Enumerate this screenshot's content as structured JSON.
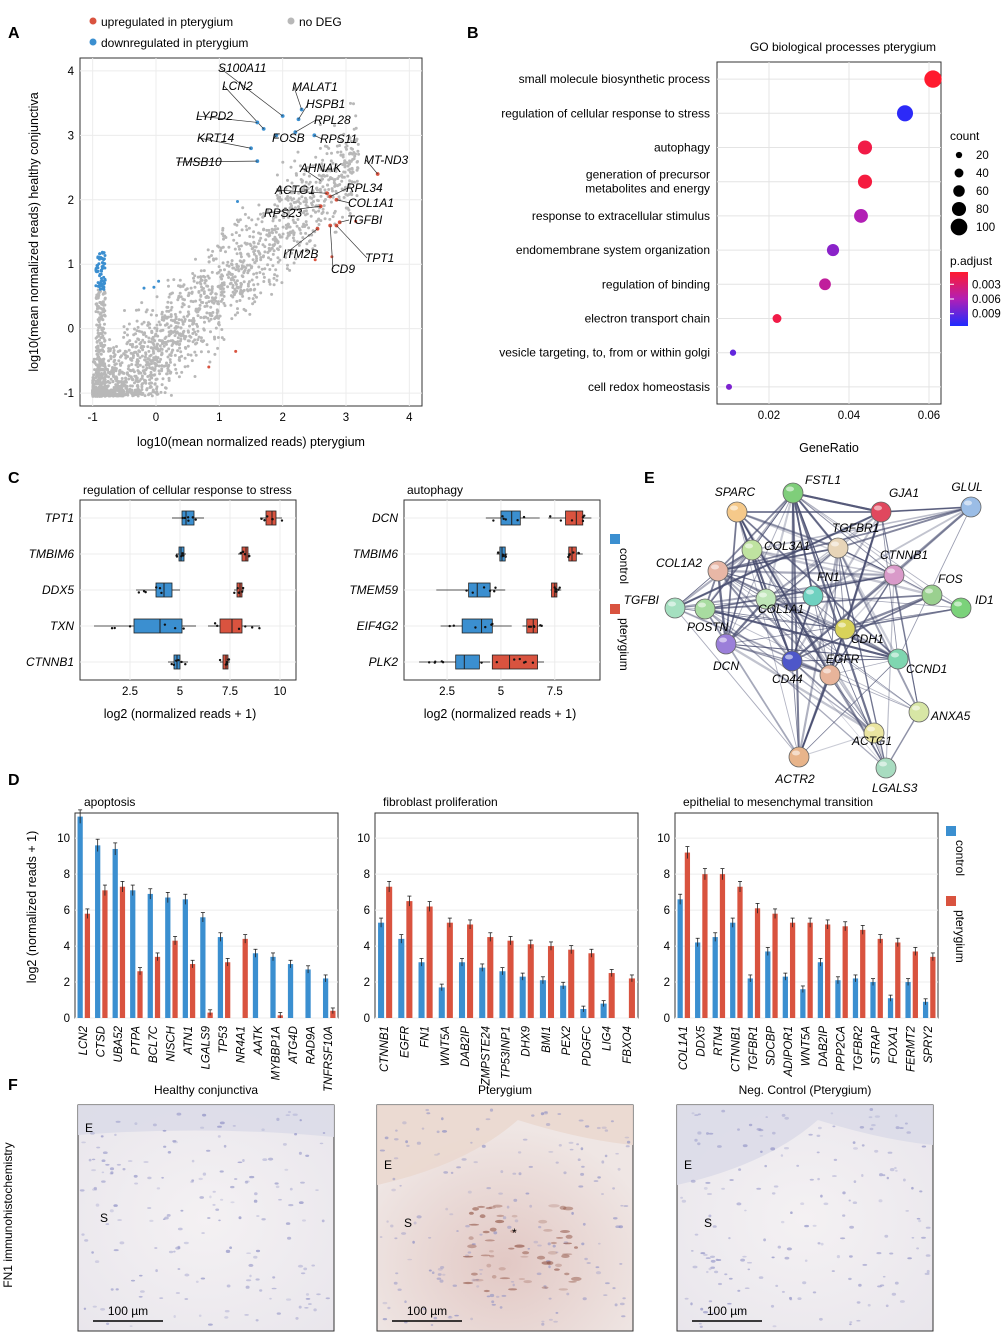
{
  "colors": {
    "up": "#d9533f",
    "down": "#3b8fd0",
    "nodeg": "#b8b8b8",
    "control": "#3b8fd0",
    "pterygium": "#d9533f"
  },
  "panel_labels": [
    "A",
    "B",
    "C",
    "D",
    "E",
    "F"
  ],
  "chart_data": [
    {
      "panel": "A",
      "type": "scatter",
      "xlabel": "log10(mean normalized reads) pterygium",
      "ylabel": "log10(mean normalized reads) healthy conjunctiva",
      "xlim": [
        -1.2,
        4.2
      ],
      "ylim": [
        -1.2,
        4.2
      ],
      "xticks": [
        -1,
        0,
        1,
        2,
        3,
        4
      ],
      "yticks": [
        -1,
        0,
        1,
        2,
        3,
        4
      ],
      "legend": [
        {
          "label": "upregulated in pterygium",
          "color": "up"
        },
        {
          "label": "no DEG",
          "color": "nodeg"
        },
        {
          "label": "downregulated in pterygium",
          "color": "down"
        }
      ],
      "labeled_genes": [
        {
          "name": "S100A11",
          "x": 2.0,
          "y": 3.3,
          "group": "down"
        },
        {
          "name": "MALAT1",
          "x": 2.3,
          "y": 3.4,
          "group": "down"
        },
        {
          "name": "LCN2",
          "x": 1.7,
          "y": 3.1,
          "group": "down"
        },
        {
          "name": "HSPB1",
          "x": 2.25,
          "y": 3.25,
          "group": "down"
        },
        {
          "name": "LYPD2",
          "x": 1.6,
          "y": 3.2,
          "group": "down"
        },
        {
          "name": "RPL28",
          "x": 2.2,
          "y": 3.05,
          "group": "down"
        },
        {
          "name": "KRT14",
          "x": 1.5,
          "y": 2.8,
          "group": "down"
        },
        {
          "name": "FOSB",
          "x": 1.9,
          "y": 3.0,
          "group": "down"
        },
        {
          "name": "RPS11",
          "x": 2.5,
          "y": 3.0,
          "group": "down"
        },
        {
          "name": "TMSB10",
          "x": 1.6,
          "y": 2.6,
          "group": "down"
        },
        {
          "name": "MT-ND3",
          "x": 3.5,
          "y": 2.4,
          "group": "up"
        },
        {
          "name": "AHNAK",
          "x": 2.6,
          "y": 2.3,
          "group": "nodeg"
        },
        {
          "name": "RPL34",
          "x": 2.75,
          "y": 2.05,
          "group": "up"
        },
        {
          "name": "ACTG1",
          "x": 2.7,
          "y": 2.1,
          "group": "up"
        },
        {
          "name": "COL1A1",
          "x": 2.85,
          "y": 2.0,
          "group": "up"
        },
        {
          "name": "RPS23",
          "x": 2.6,
          "y": 1.9,
          "group": "up"
        },
        {
          "name": "TGFBI",
          "x": 2.9,
          "y": 1.65,
          "group": "up"
        },
        {
          "name": "ITM2B",
          "x": 2.55,
          "y": 1.55,
          "group": "up"
        },
        {
          "name": "TPT1",
          "x": 2.85,
          "y": 1.6,
          "group": "up"
        },
        {
          "name": "CD9",
          "x": 2.75,
          "y": 1.6,
          "group": "up"
        }
      ]
    },
    {
      "panel": "B",
      "type": "scatter",
      "title": "GO biological processes pterygium",
      "xlabel": "GeneRatio",
      "xlim": [
        0.007,
        0.063
      ],
      "xticks": [
        0.02,
        0.04,
        0.06
      ],
      "categories": [
        "small molecule biosynthetic process",
        "regulation of cellular response to stress",
        "autophagy",
        "generation of precursor metabolites and energy",
        "response to extracellular stimulus",
        "endomembrane system organization",
        "regulation of binding",
        "electron transport chain",
        "vesicle targeting, to, from or within golgi",
        "cell redox homeostasis"
      ],
      "gene_ratio": [
        0.061,
        0.054,
        0.044,
        0.044,
        0.043,
        0.036,
        0.034,
        0.022,
        0.011,
        0.01
      ],
      "count": [
        105,
        95,
        80,
        80,
        78,
        65,
        62,
        40,
        20,
        18
      ],
      "p_adjust": [
        0.0005,
        0.011,
        0.0015,
        0.0012,
        0.006,
        0.0075,
        0.005,
        0.0015,
        0.009,
        0.008
      ],
      "size_legend": {
        "title": "count",
        "values": [
          20,
          40,
          60,
          80,
          100
        ]
      },
      "color_legend": {
        "title": "p.adjust",
        "ticks": [
          0.003,
          0.006,
          0.009
        ],
        "range": [
          0.0005,
          0.0115
        ]
      }
    },
    {
      "panel": "C",
      "type": "boxplot",
      "title": "regulation of cellular response to stress",
      "xlabel": "log2 (normalized reads + 1)",
      "xlim": [
        0,
        10.8
      ],
      "xticks": [
        2.5,
        5.0,
        7.5,
        10.0
      ],
      "categories": [
        "TPT1",
        "TMBIM6",
        "DDX5",
        "TXN",
        "CTNNB1"
      ],
      "series": [
        {
          "name": "control",
          "boxes": [
            [
              4.6,
              5.1,
              5.3,
              5.7,
              6.2
            ],
            [
              4.8,
              4.95,
              5.05,
              5.2,
              5.3
            ],
            [
              2.8,
              3.8,
              4.2,
              4.6,
              5.0
            ],
            [
              0.7,
              2.7,
              4.0,
              5.1,
              5.8
            ],
            [
              4.4,
              4.7,
              4.85,
              5.0,
              5.4
            ]
          ]
        },
        {
          "name": "pterygium",
          "boxes": [
            [
              9.0,
              9.3,
              9.6,
              9.8,
              10.1
            ],
            [
              7.9,
              8.1,
              8.3,
              8.4,
              8.5
            ],
            [
              7.7,
              7.85,
              8.0,
              8.1,
              8.2
            ],
            [
              6.4,
              7.0,
              7.6,
              8.1,
              9.0
            ],
            [
              7.0,
              7.15,
              7.3,
              7.4,
              7.5
            ]
          ]
        }
      ]
    },
    {
      "panel": "C",
      "type": "boxplot",
      "title": "autophagy",
      "xlabel": "log2 (normalized reads + 1)",
      "xlim": [
        0.5,
        9.6
      ],
      "xticks": [
        2.5,
        5.0,
        7.5
      ],
      "categories": [
        "DCN",
        "TMBIM6",
        "TMEM59",
        "EIF4G2",
        "PLK2"
      ],
      "series": [
        {
          "name": "control",
          "boxes": [
            [
              4.3,
              5.0,
              5.5,
              5.9,
              6.8
            ],
            [
              4.8,
              4.95,
              5.05,
              5.2,
              5.3
            ],
            [
              2.0,
              3.5,
              3.9,
              4.5,
              5.2
            ],
            [
              2.2,
              3.2,
              4.1,
              4.6,
              5.5
            ],
            [
              1.2,
              2.9,
              3.3,
              4.0,
              4.5
            ]
          ]
        },
        {
          "name": "pterygium",
          "boxes": [
            [
              7.2,
              8.0,
              8.5,
              8.8,
              9.2
            ],
            [
              8.1,
              8.15,
              8.3,
              8.5,
              8.8
            ],
            [
              7.3,
              7.35,
              7.5,
              7.6,
              7.8
            ],
            [
              6.0,
              6.2,
              6.5,
              6.7,
              6.9
            ],
            [
              4.6,
              4.6,
              5.4,
              6.7,
              7.0
            ]
          ]
        }
      ],
      "legend": [
        {
          "label": "control",
          "color": "control"
        },
        {
          "label": "pterygium",
          "color": "pterygium"
        }
      ]
    },
    {
      "panel": "D",
      "type": "bar",
      "title": "apoptosis",
      "ylabel": "log2 (normalized reads + 1)",
      "ylim": [
        0,
        11.4
      ],
      "yticks": [
        0,
        2,
        4,
        6,
        8,
        10
      ],
      "categories": [
        "LCN2",
        "CTSD",
        "UBA52",
        "PTPA",
        "BCL7C",
        "NISCH",
        "ATN1",
        "LGALS9",
        "TP53",
        "NR4A1",
        "AATK",
        "MYBBP1A",
        "ATG4D",
        "RAD9A",
        "TNFRSF10A"
      ],
      "series": [
        {
          "name": "control",
          "values": [
            11.2,
            9.6,
            9.4,
            7.1,
            6.9,
            6.7,
            6.6,
            5.6,
            4.5,
            0,
            3.6,
            3.4,
            3.0,
            2.7,
            2.2
          ]
        },
        {
          "name": "pterygium",
          "values": [
            5.8,
            7.1,
            7.3,
            2.6,
            3.4,
            4.3,
            3.0,
            0.3,
            3.1,
            4.4,
            0,
            0.15,
            0,
            0,
            0.4
          ]
        }
      ]
    },
    {
      "panel": "D",
      "type": "bar",
      "title": "fibroblast proliferation",
      "ylim": [
        0,
        11.4
      ],
      "yticks": [
        0,
        2,
        4,
        6,
        8,
        10
      ],
      "categories": [
        "CTNNB1",
        "EGFR",
        "FN1",
        "WNT5A",
        "DAB2IP",
        "ZMPSTE24",
        "TP53INP1",
        "DHX9",
        "BMI1",
        "PEX2",
        "PDGFC",
        "LIG4",
        "FBXO4"
      ],
      "series": [
        {
          "name": "control",
          "values": [
            5.3,
            4.4,
            3.1,
            1.7,
            3.1,
            2.8,
            2.6,
            2.3,
            2.1,
            1.8,
            0.5,
            0.8,
            0
          ]
        },
        {
          "name": "pterygium",
          "values": [
            7.3,
            6.5,
            6.2,
            5.3,
            5.2,
            4.5,
            4.3,
            4.1,
            4.0,
            3.8,
            3.6,
            2.5,
            2.2
          ]
        }
      ]
    },
    {
      "panel": "D",
      "type": "bar",
      "title": "epithelial to mesenchymal transition",
      "ylim": [
        0,
        11.4
      ],
      "yticks": [
        0,
        2,
        4,
        6,
        8,
        10
      ],
      "categories": [
        "COL1A1",
        "DDX5",
        "RTN4",
        "CTNNB1",
        "TGFBR1",
        "SDCBP",
        "ADIPOR1",
        "WNT5A",
        "DAB2IP",
        "PPP2CA",
        "TGFBR2",
        "STRAP",
        "FOXA1",
        "FERMT2",
        "SPRY2"
      ],
      "series": [
        {
          "name": "control",
          "values": [
            6.6,
            4.2,
            4.5,
            5.3,
            2.2,
            3.7,
            2.3,
            1.6,
            3.1,
            2.1,
            2.2,
            2.0,
            1.1,
            2.0,
            0.9
          ]
        },
        {
          "name": "pterygium",
          "values": [
            9.2,
            8.0,
            8.0,
            7.3,
            6.1,
            5.8,
            5.3,
            5.3,
            5.2,
            5.1,
            4.9,
            4.4,
            4.2,
            3.7,
            3.4
          ]
        }
      ],
      "legend": [
        {
          "label": "control",
          "color": "control"
        },
        {
          "label": "pterygium",
          "color": "pterygium"
        }
      ]
    }
  ],
  "network": {
    "nodes": [
      {
        "name": "SPARC",
        "color": "#f5c98a"
      },
      {
        "name": "FSTL1",
        "color": "#7fce7a"
      },
      {
        "name": "GJA1",
        "color": "#e0485e"
      },
      {
        "name": "GLUL",
        "color": "#9bbde6"
      },
      {
        "name": "COL3A1",
        "color": "#bfe3a0"
      },
      {
        "name": "TGFBR1",
        "color": "#e8d5b8"
      },
      {
        "name": "COL1A2",
        "color": "#e8b7a6"
      },
      {
        "name": "CTNNB1",
        "color": "#d99ac9"
      },
      {
        "name": "FN1",
        "color": "#6fd1c0"
      },
      {
        "name": "FOS",
        "color": "#9ad08f"
      },
      {
        "name": "ID1",
        "color": "#7bd27a"
      },
      {
        "name": "TGFBI",
        "color": "#a5e0c0"
      },
      {
        "name": "COL1A1",
        "color": "#bfe6b8"
      },
      {
        "name": "CDH1",
        "color": "#d8d25a"
      },
      {
        "name": "POSTN",
        "color": "#a8dca0"
      },
      {
        "name": "DCN",
        "color": "#9b7fd9"
      },
      {
        "name": "CD44",
        "color": "#4e57c9"
      },
      {
        "name": "EGFR",
        "color": "#e8b49a"
      },
      {
        "name": "CCND1",
        "color": "#7fd6b0"
      },
      {
        "name": "ANXA5",
        "color": "#d7e6a5"
      },
      {
        "name": "ACTG1",
        "color": "#eae5a0"
      },
      {
        "name": "LGALS3",
        "color": "#a8dcc0"
      },
      {
        "name": "ACTR2",
        "color": "#e8b48a"
      }
    ]
  },
  "panel_f": {
    "side_label": "FN1 immunohistochemistry",
    "images": [
      {
        "title": "Healthy conjunctiva",
        "e": "E",
        "s": "S",
        "scale": "100 µm",
        "star": ""
      },
      {
        "title": "Pterygium",
        "e": "E",
        "s": "S",
        "scale": "100 µm",
        "star": "*"
      },
      {
        "title": "Neg. Control (Pterygium)",
        "e": "E",
        "s": "S",
        "scale": "100 µm",
        "star": ""
      }
    ]
  }
}
